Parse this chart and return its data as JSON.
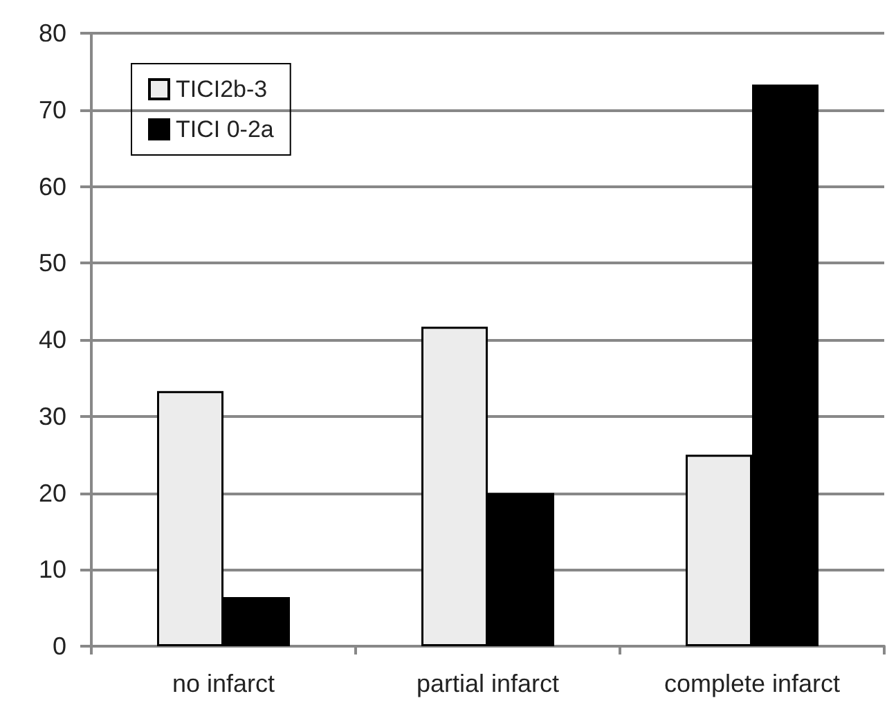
{
  "chart_data": {
    "type": "bar",
    "categories": [
      "no infarct",
      "partial infarct",
      "complete infarct"
    ],
    "series": [
      {
        "name": "TICI2b-3",
        "color": "#ececec",
        "values": [
          33.3,
          41.7,
          25
        ]
      },
      {
        "name": "TICI 0-2a",
        "color": "#000000",
        "values": [
          6.4,
          20,
          73.3
        ]
      }
    ],
    "ylim": [
      0,
      80
    ],
    "yticks": [
      0,
      10,
      20,
      30,
      40,
      50,
      60,
      70,
      80
    ],
    "grid": "y",
    "legend": "top left"
  }
}
